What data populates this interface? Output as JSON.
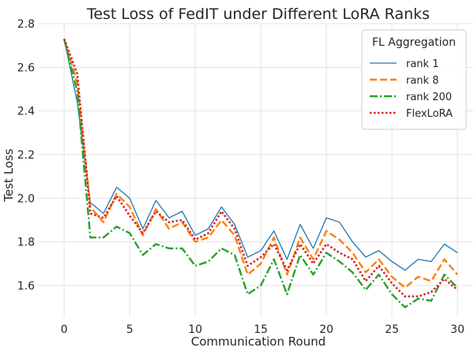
{
  "chart_data": {
    "type": "line",
    "title": "Test Loss of FedIT under Different LoRA Ranks",
    "xlabel": "Communication Round",
    "ylabel": "Test Loss",
    "xlim": [
      -2,
      31.2
    ],
    "ylim": [
      1.455,
      2.8
    ],
    "xticks": [
      0,
      5,
      10,
      15,
      20,
      25,
      30
    ],
    "yticks": [
      1.6,
      1.8,
      2.0,
      2.2,
      2.4,
      2.6,
      2.8
    ],
    "grid": true,
    "legend": {
      "title": "FL Aggregation",
      "position": "top-right"
    },
    "x": [
      0,
      1,
      2,
      3,
      4,
      5,
      6,
      7,
      8,
      9,
      10,
      11,
      12,
      13,
      14,
      15,
      16,
      17,
      18,
      19,
      20,
      21,
      22,
      23,
      24,
      25,
      26,
      27,
      28,
      29,
      30
    ],
    "series": [
      {
        "name": "rank 1",
        "color": "#1f77b4",
        "dash": "solid",
        "values": [
          2.73,
          2.44,
          1.98,
          1.93,
          2.05,
          2.0,
          1.86,
          1.99,
          1.91,
          1.94,
          1.83,
          1.86,
          1.96,
          1.88,
          1.73,
          1.76,
          1.85,
          1.72,
          1.88,
          1.77,
          1.91,
          1.89,
          1.8,
          1.73,
          1.76,
          1.71,
          1.67,
          1.72,
          1.71,
          1.79,
          1.75
        ]
      },
      {
        "name": "rank 8",
        "color": "#ff7f0e",
        "dash": "dashed",
        "values": [
          2.73,
          2.53,
          1.96,
          1.89,
          2.02,
          1.96,
          1.83,
          1.95,
          1.86,
          1.89,
          1.8,
          1.82,
          1.9,
          1.83,
          1.65,
          1.7,
          1.82,
          1.65,
          1.82,
          1.72,
          1.85,
          1.81,
          1.75,
          1.66,
          1.72,
          1.64,
          1.59,
          1.64,
          1.62,
          1.72,
          1.65
        ]
      },
      {
        "name": "rank 200",
        "color": "#2ca02c",
        "dash": "dashdot",
        "values": [
          2.73,
          2.49,
          1.82,
          1.82,
          1.87,
          1.84,
          1.74,
          1.79,
          1.77,
          1.77,
          1.69,
          1.71,
          1.77,
          1.74,
          1.56,
          1.6,
          1.72,
          1.56,
          1.74,
          1.65,
          1.75,
          1.71,
          1.66,
          1.58,
          1.65,
          1.56,
          1.5,
          1.54,
          1.53,
          1.65,
          1.59
        ]
      },
      {
        "name": "FlexLoRA",
        "color": "#d62728",
        "dash": "dotted",
        "values": [
          2.73,
          2.57,
          1.93,
          1.91,
          2.01,
          1.92,
          1.84,
          1.94,
          1.89,
          1.9,
          1.81,
          1.84,
          1.94,
          1.86,
          1.69,
          1.73,
          1.79,
          1.67,
          1.79,
          1.7,
          1.79,
          1.75,
          1.72,
          1.62,
          1.69,
          1.61,
          1.55,
          1.55,
          1.57,
          1.63,
          1.58
        ]
      }
    ]
  }
}
